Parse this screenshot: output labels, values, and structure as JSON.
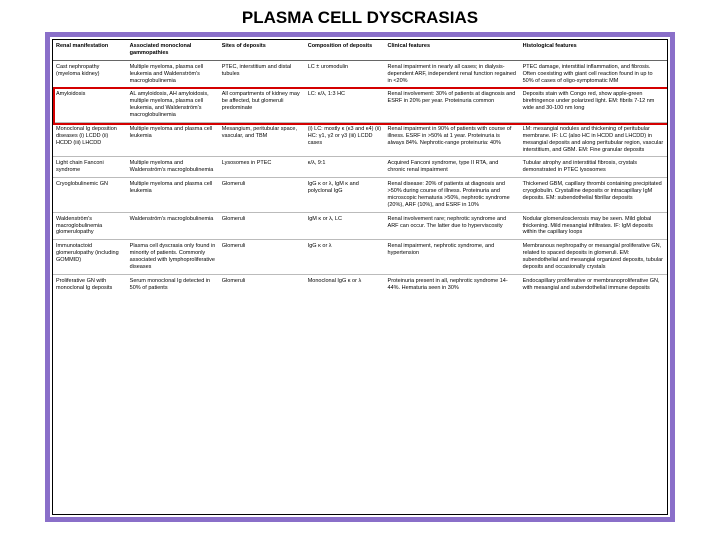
{
  "title": "PLASMA CELL DYSCRASIAS",
  "title_fontsize": 17,
  "title_color": "#000000",
  "frame_border_color": "#8a6fc9",
  "highlight_border_color": "#d40000",
  "highlight_row_index": 1,
  "headers": [
    "Renal manifestation",
    "Associated monoclonal gammopathies",
    "Sites of deposits",
    "Composition of deposits",
    "Clinical features",
    "Histological features"
  ],
  "rows": [
    {
      "renal": "Cast nephropathy (myeloma kidney)",
      "assoc": "Multiple myeloma, plasma cell leukemia and Waldenström's macroglobulinemia",
      "sites": "PTEC, interstitium and distal tubules",
      "comp": "LC ± uromodulin",
      "clinical": "Renal impairment in nearly all cases; in dialysis-dependent ARF, independent renal function regained in <20%",
      "histo": "PTEC damage, interstitial inflammation, and fibrosis. Often coexisting with giant cell reaction found in up to 50% of cases of oligo-symptomatic MM"
    },
    {
      "renal": "Amyloidosis",
      "assoc": "AL amyloidosis, AH amyloidosis, multiple myeloma, plasma cell leukemia, and Waldenström's macroglobulinemia",
      "sites": "All compartments of kidney may be affected, but glomeruli predominate",
      "comp": "LC: κ/λ, 1:3 HC",
      "clinical": "Renal involvement: 30% of patients at diagnosis and ESRF in 20% per year. Proteinuria common",
      "histo": "Deposits stain with Congo red, show apple-green birefringence under polarized light. EM: fibrils 7-12 nm wide and 30-100 nm long"
    },
    {
      "renal": "Monoclonal Ig deposition diseases (i) LCDD (ii) HCDD (iii) LHCDD",
      "assoc": "Multiple myeloma and plasma cell leukemia",
      "sites": "Mesangium, peritubular space, vascular, and TBM",
      "comp": "(i) LC: mostly κ (κ3 and κ4) (ii) HC: γ1, γ2 or γ3 (iii) LCDD cases",
      "clinical": "Renal impairment in 90% of patients with course of illness. ESRF in >50% at 1 year. Proteinuria is always 84%. Nephrotic-range proteinuria: 40%",
      "histo": "LM: mesangial nodules and thickening of peritubular membrane. IF: LC (also HC in HCDD and LHCDD) in mesangial deposits and along peritubular region, vascular interstitium, and GBM. EM: Fine granular deposits"
    },
    {
      "renal": "Light chain Fanconi syndrome",
      "assoc": "Multiple myeloma and Waldenström's macroglobulinemia",
      "sites": "Lysosomes in PTEC",
      "comp": "κ/λ, 9:1",
      "clinical": "Acquired Fanconi syndrome, type II RTA, and chronic renal impairment",
      "histo": "Tubular atrophy and interstitial fibrosis, crystals demonstrated in PTEC lysosomes"
    },
    {
      "renal": "Cryoglobulinemic GN",
      "assoc": "Multiple myeloma and plasma cell leukemia",
      "sites": "Glomeruli",
      "comp": "IgG κ or λ, IgM κ and polyclonal IgG",
      "clinical": "Renal disease: 20% of patients at diagnosis and >50% during course of illness. Proteinuria and microscopic hematuria >50%, nephrotic syndrome (20%), ARF (10%), and ESRF in 10%",
      "histo": "Thickened GBM, capillary thrombi containing precipitated cryoglobulin. Crystalline deposits or intracapillary IgM deposits. EM: subendothelial fibrillar deposits"
    },
    {
      "renal": "Waldenström's macroglobulinemia glomerulopathy",
      "assoc": "Waldenström's macroglobulinemia",
      "sites": "Glomeruli",
      "comp": "IgM κ or λ, LC",
      "clinical": "Renal involvement rare; nephrotic syndrome and ARF can occur. The latter due to hyperviscosity",
      "histo": "Nodular glomerulosclerosis may be seen. Mild global thickening. Mild mesangial infiltrates. IF: IgM deposits within the capillary loops"
    },
    {
      "renal": "Immunotactoid glomerulopathy (including GOMMID)",
      "assoc": "Plasma cell dyscrasia only found in minority of patients. Commonly associated with lymphoproliferative diseases",
      "sites": "Glomeruli",
      "comp": "IgG κ or λ",
      "clinical": "Renal impairment, nephrotic syndrome, and hypertension",
      "histo": "Membranous nephropathy or mesangial proliferative GN, related to spaced deposits in glomeruli. EM: subendothelial and mesangial organized deposits, tubular deposits and occasionally crystals"
    },
    {
      "renal": "Proliferative GN with monoclonal Ig deposits",
      "assoc": "Serum monoclonal Ig detected in 50% of patients",
      "sites": "Glomeruli",
      "comp": "Monoclonal IgG κ or λ",
      "clinical": "Proteinuria present in all, nephrotic syndrome 14-44%. Hematuria seen in 30%",
      "histo": "Endocapillary proliferative or membranoproliferative GN, with mesangial and subendothelial immune deposits"
    }
  ]
}
